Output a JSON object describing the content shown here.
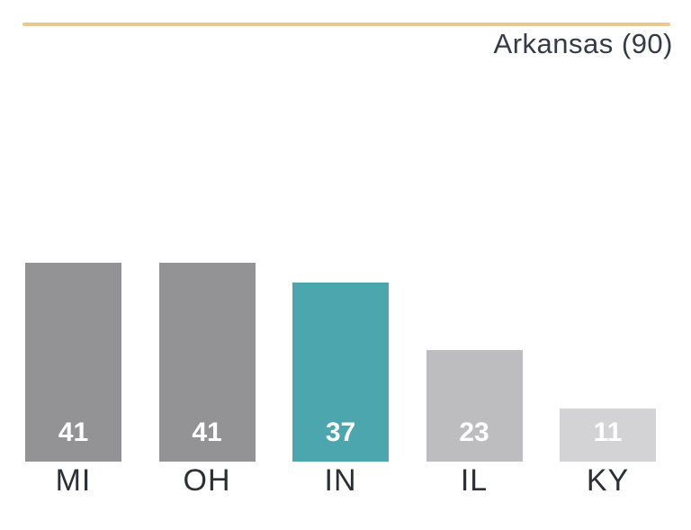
{
  "header": {
    "title": "Arkansas (90)",
    "rule_color": "#ebc98d",
    "title_color": "#343b46"
  },
  "chart_data": {
    "type": "bar",
    "title": "Arkansas (90)",
    "categories": [
      "MI",
      "OH",
      "IN",
      "IL",
      "KY"
    ],
    "values": [
      41,
      41,
      37,
      23,
      11
    ],
    "bar_colors": [
      "#939395",
      "#939395",
      "#4ba6ae",
      "#bdbdbf",
      "#d3d3d5"
    ],
    "highlight_category": "IN",
    "highlight_color": "#4ba6ae",
    "value_label_color": "#ffffff",
    "value_label_position": "inside-bottom",
    "category_label_color": "#2b2f36",
    "ylim": [
      0,
      41
    ],
    "grid": false,
    "legend": false,
    "axes_shown": false
  }
}
